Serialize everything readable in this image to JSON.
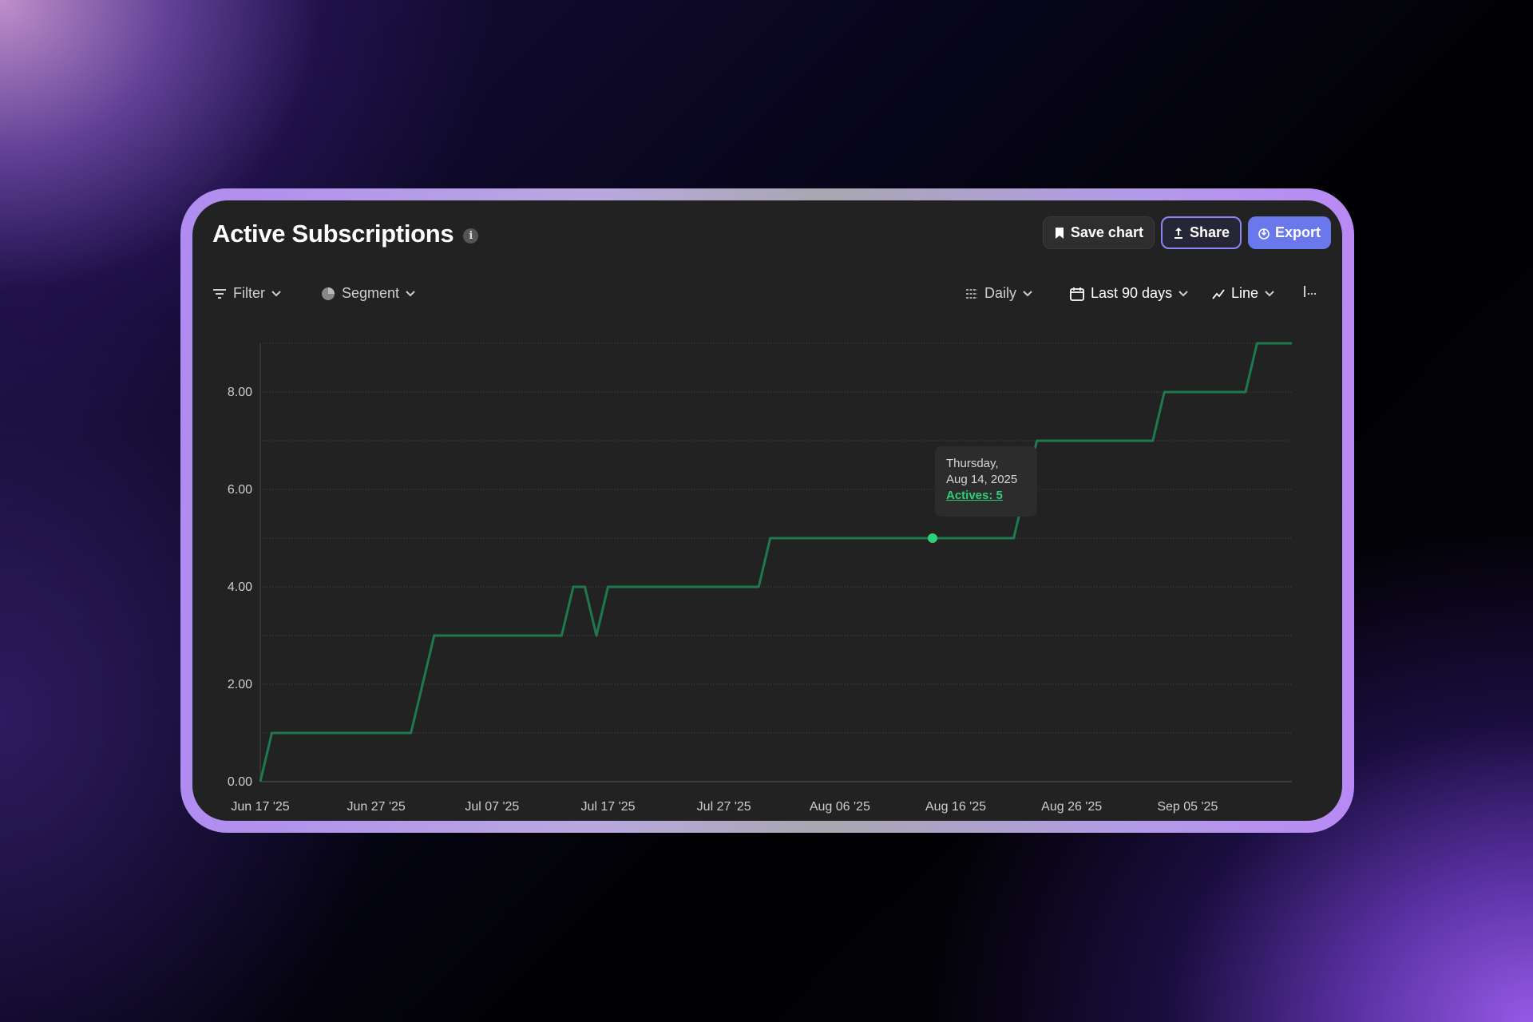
{
  "header": {
    "title": "Active Subscriptions",
    "save_label": "Save chart",
    "share_label": "Share",
    "export_label": "Export"
  },
  "toolbar": {
    "filter_label": "Filter",
    "segment_label": "Segment",
    "interval_label": "Daily",
    "range_label": "Last 90 days",
    "chart_type_label": "Line"
  },
  "tooltip": {
    "day": "Thursday,",
    "date": "Aug 14, 2025",
    "value_label": "Actives: 5"
  },
  "colors": {
    "line": "#1e7a4e",
    "highlight": "#2fd07a",
    "export": "#6a78ec",
    "share_border": "#8c86f5"
  },
  "chart_data": {
    "type": "line",
    "title": "Active Subscriptions",
    "ylim": [
      0,
      9
    ],
    "yticks": [
      0,
      2,
      4,
      6,
      8
    ],
    "ytick_labels": [
      "0.00",
      "2.00",
      "4.00",
      "6.00",
      "8.00"
    ],
    "grid": true,
    "x_domain": [
      "2025-06-17",
      "2025-09-14"
    ],
    "xtick_labels": [
      "Jun 17 '25",
      "Jun 27 '25",
      "Jul 07 '25",
      "Jul 17 '25",
      "Jul 27 '25",
      "Aug 06 '25",
      "Aug 16 '25",
      "Aug 26 '25",
      "Sep 05 '25"
    ],
    "series": [
      {
        "points": [
          [
            "2025-06-17",
            0
          ],
          [
            "2025-06-18",
            1
          ],
          [
            "2025-06-30",
            1
          ],
          [
            "2025-07-02",
            3
          ],
          [
            "2025-07-13",
            3
          ],
          [
            "2025-07-14",
            4
          ],
          [
            "2025-07-15",
            4
          ],
          [
            "2025-07-16",
            3
          ],
          [
            "2025-07-17",
            4
          ],
          [
            "2025-07-30",
            4
          ],
          [
            "2025-07-31",
            5
          ],
          [
            "2025-08-21",
            5
          ],
          [
            "2025-08-23",
            7
          ],
          [
            "2025-09-02",
            7
          ],
          [
            "2025-09-03",
            8
          ],
          [
            "2025-09-10",
            8
          ],
          [
            "2025-09-11",
            9
          ],
          [
            "2025-09-14",
            9
          ]
        ]
      }
    ],
    "highlight": {
      "x": "2025-08-14",
      "y": 5
    }
  }
}
